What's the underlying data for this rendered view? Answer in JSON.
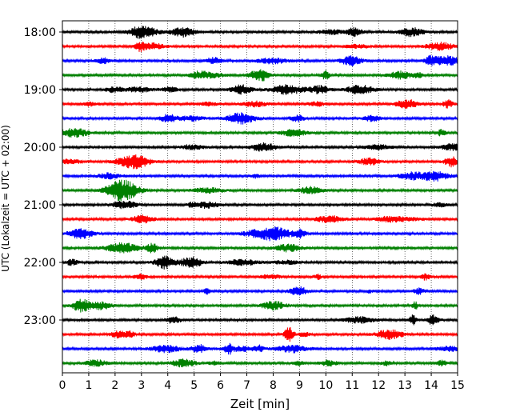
{
  "chart_data": {
    "type": "line",
    "title": "",
    "xlabel": "Zeit  [min]",
    "ylabel": "UTC (Lokalzeit = UTC + 02:00)",
    "xlim": [
      0,
      15
    ],
    "x_ticks": [
      0,
      1,
      2,
      3,
      4,
      5,
      6,
      7,
      8,
      9,
      10,
      11,
      12,
      13,
      14,
      15
    ],
    "x_tick_labels": [
      "0",
      "1",
      "2",
      "3",
      "4",
      "5",
      "6",
      "7",
      "8",
      "9",
      "10",
      "11",
      "12",
      "13",
      "14",
      "15"
    ],
    "y_ticks": [
      {
        "row": 0,
        "label": "18:00"
      },
      {
        "row": 4,
        "label": "19:00"
      },
      {
        "row": 8,
        "label": "20:00"
      },
      {
        "row": 12,
        "label": "21:00"
      },
      {
        "row": 16,
        "label": "22:00"
      },
      {
        "row": 20,
        "label": "23:00"
      }
    ],
    "grid": "vertical-dotted",
    "trace_colors": [
      "#000000",
      "#ff0000",
      "#0000ff",
      "#008000"
    ],
    "traces": [
      {
        "start": "18:00"
      },
      {
        "start": "18:15"
      },
      {
        "start": "18:30"
      },
      {
        "start": "18:45"
      },
      {
        "start": "19:00"
      },
      {
        "start": "19:15"
      },
      {
        "start": "19:30"
      },
      {
        "start": "19:45"
      },
      {
        "start": "20:00"
      },
      {
        "start": "20:15"
      },
      {
        "start": "20:30"
      },
      {
        "start": "20:45"
      },
      {
        "start": "21:00"
      },
      {
        "start": "21:15"
      },
      {
        "start": "21:30"
      },
      {
        "start": "21:45"
      },
      {
        "start": "22:00"
      },
      {
        "start": "22:15"
      },
      {
        "start": "22:30"
      },
      {
        "start": "22:45"
      },
      {
        "start": "23:00"
      },
      {
        "start": "23:15"
      },
      {
        "start": "23:30"
      },
      {
        "start": "23:45"
      }
    ]
  }
}
